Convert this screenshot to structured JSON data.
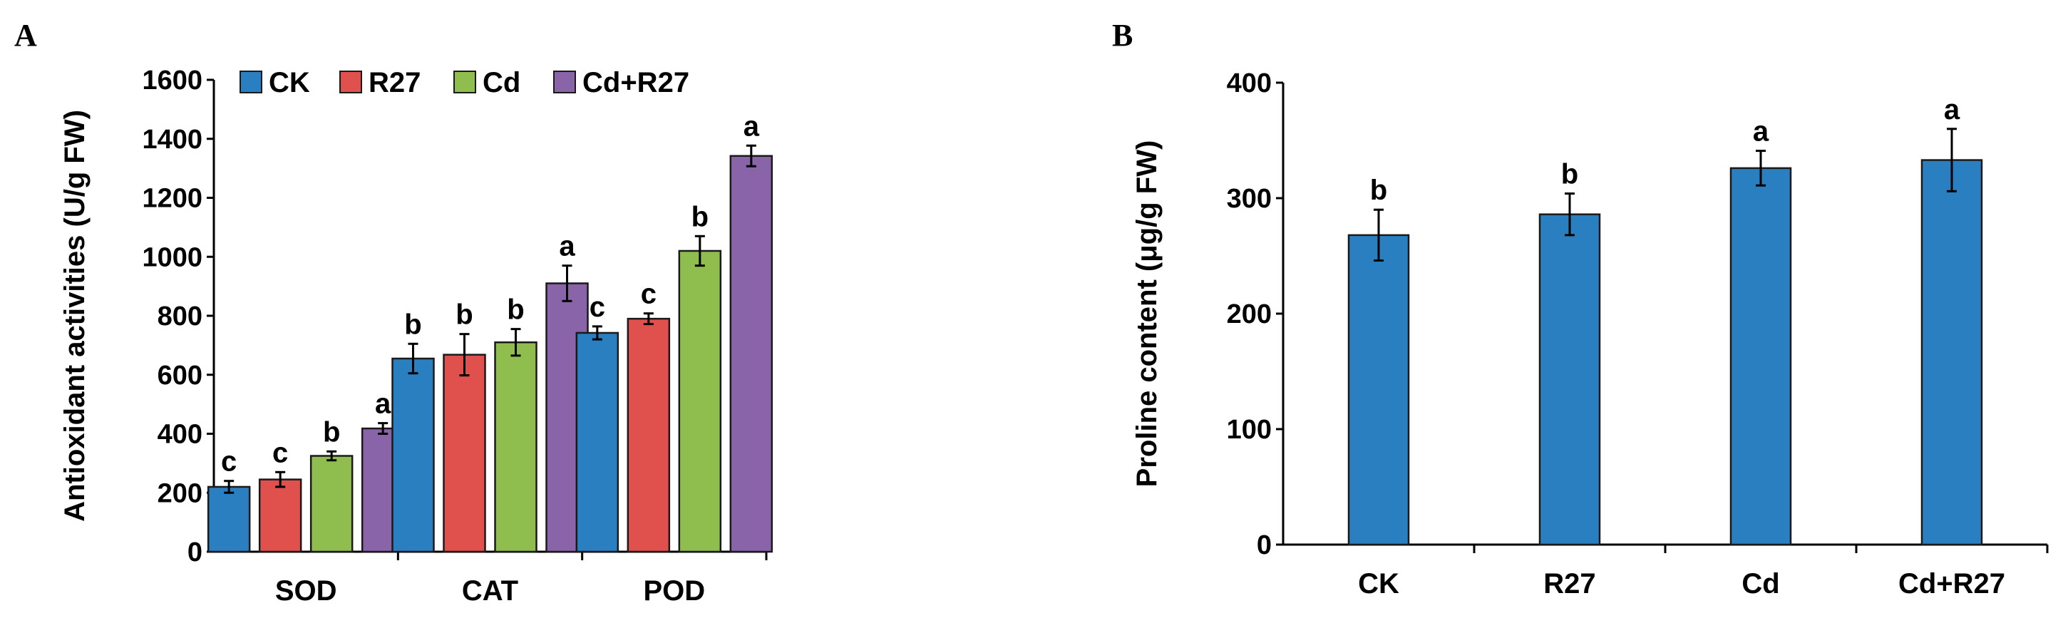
{
  "chart_data": [
    {
      "panel": "A",
      "type": "bar",
      "categories": [
        "SOD",
        "CAT",
        "POD"
      ],
      "series": [
        {
          "name": "CK",
          "color": "#2a7fc1",
          "values": [
            220,
            655,
            742
          ],
          "errors": [
            20,
            50,
            22
          ],
          "letters": [
            "c",
            "b",
            "c"
          ]
        },
        {
          "name": "R27",
          "color": "#e0504d",
          "values": [
            245,
            668,
            790
          ],
          "errors": [
            25,
            70,
            18
          ],
          "letters": [
            "c",
            "b",
            "c"
          ]
        },
        {
          "name": "Cd",
          "color": "#8fbe4e",
          "values": [
            325,
            710,
            1020
          ],
          "errors": [
            15,
            45,
            50
          ],
          "letters": [
            "b",
            "b",
            "b"
          ]
        },
        {
          "name": "Cd+R27",
          "color": "#8a64a8",
          "values": [
            418,
            910,
            1342
          ],
          "errors": [
            18,
            60,
            35
          ],
          "letters": [
            "a",
            "a",
            "a"
          ]
        }
      ],
      "ylabel": "Antioxidant activities (U/g FW)",
      "xlabel": "",
      "ylim": [
        0,
        1600
      ],
      "yticks": [
        "0",
        "200",
        "400",
        "600",
        "800",
        "1000",
        "1200",
        "1400",
        "1600"
      ],
      "legend_position": "top-left",
      "grid": false
    },
    {
      "panel": "B",
      "type": "bar",
      "categories": [
        "CK",
        "R27",
        "Cd",
        "Cd+R27"
      ],
      "color": "#2a7fc1",
      "values": [
        268,
        286,
        326,
        333
      ],
      "errors": [
        22,
        18,
        15,
        27
      ],
      "letters": [
        "b",
        "b",
        "a",
        "a"
      ],
      "ylabel": "Proline content (μg/g FW)",
      "xlabel": "",
      "ylim": [
        0,
        400
      ],
      "yticks": [
        "0",
        "100",
        "200",
        "300",
        "400"
      ],
      "grid": false
    }
  ]
}
